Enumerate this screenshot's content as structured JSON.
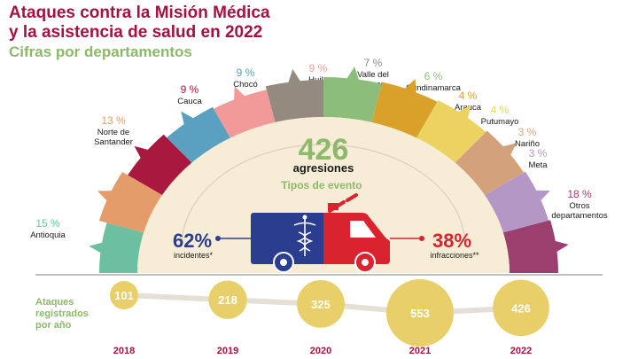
{
  "header": {
    "title_line1": "Ataques contra la Misión Médica",
    "title_line2": "y la asistencia de salud en 2022",
    "subtitle": "Cifras por departamentos"
  },
  "center": {
    "total": "426",
    "total_label": "agresiones",
    "types_label": "Tipos de evento"
  },
  "event_types": {
    "incidents": {
      "pct": "62%",
      "label": "incidentes*"
    },
    "infractions": {
      "pct": "38%",
      "label": "infracciones**"
    }
  },
  "yearly": {
    "label_lines": [
      "Ataques",
      "registrados",
      "por año"
    ]
  },
  "colors": {
    "title": "#a4123f",
    "subtitle": "#8db96a",
    "incidents": "#2b3d8f",
    "infractions": "#d9232e",
    "bubble": "#e8cf6a",
    "inner": "#f7ecd6"
  },
  "chart_data": [
    {
      "type": "pie",
      "title": "Cifras por departamentos",
      "slices": [
        {
          "pct": "15 %",
          "name": "Antioquia",
          "value": 15,
          "color": "#6cbfa0"
        },
        {
          "pct": "13 %",
          "name": "Norte de Santander",
          "value": 13,
          "color": "#e49c6a"
        },
        {
          "pct": "9 %",
          "name": "Cauca",
          "value": 9,
          "color": "#a8183f"
        },
        {
          "pct": "9 %",
          "name": "Chocó",
          "value": 9,
          "color": "#5aa0c0"
        },
        {
          "pct": "9 %",
          "name": "Huila",
          "value": 9,
          "color": "#f29a9a"
        },
        {
          "pct": "7 %",
          "name": "Valle del Cauca",
          "value": 7,
          "color": "#948a80"
        },
        {
          "pct": "6 %",
          "name": "Cundinamarca",
          "value": 6,
          "color": "#8dbd7a"
        },
        {
          "pct": "4 %",
          "name": "Arauca",
          "value": 4,
          "color": "#d9a12a"
        },
        {
          "pct": "4 %",
          "name": "Putumayo",
          "value": 4,
          "color": "#ecd260"
        },
        {
          "pct": "3 %",
          "name": "Nariño",
          "value": 3,
          "color": "#d4a27a"
        },
        {
          "pct": "3 %",
          "name": "Meta",
          "value": 3,
          "color": "#b597c6"
        },
        {
          "pct": "18 %",
          "name": "Otros departamentos",
          "value": 18,
          "color": "#9b3f6e"
        }
      ]
    },
    {
      "type": "scatter",
      "categories": [
        "2018",
        "2019",
        "2020",
        "2021",
        "2022"
      ],
      "values": [
        101,
        218,
        325,
        553,
        426
      ],
      "value_labels": [
        "101",
        "218",
        "325",
        "553",
        "426"
      ]
    }
  ]
}
